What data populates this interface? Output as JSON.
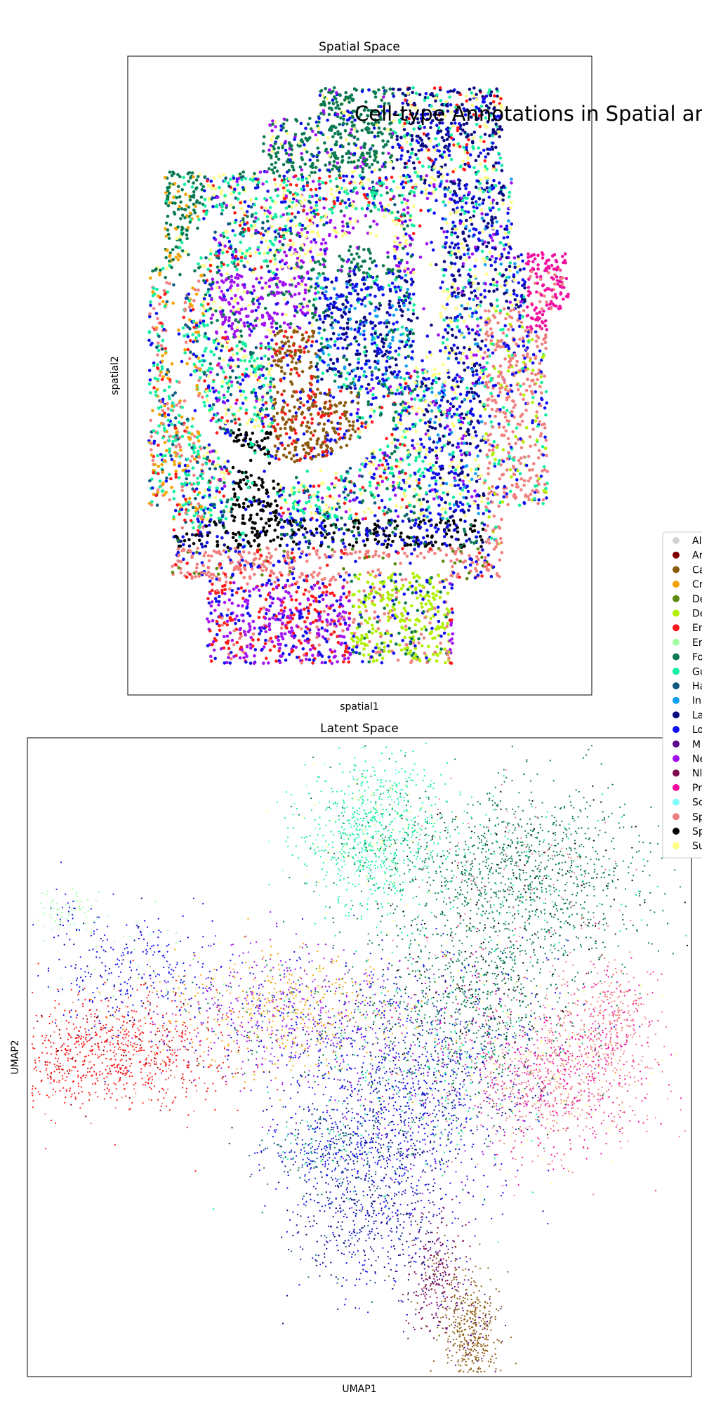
{
  "figure": {
    "suptitle": "Cell-type Annotations in Spatial and"
  },
  "chart_data": [
    {
      "type": "scatter",
      "title": "Spatial Space",
      "xlabel": "spatial1",
      "ylabel": "spatial2",
      "ticks": false,
      "grid": false,
      "xlim": [
        0,
        100
      ],
      "ylim": [
        0,
        100
      ]
    },
    {
      "type": "scatter",
      "title": "Latent Space",
      "xlabel": "UMAP1",
      "ylabel": "UMAP2",
      "ticks": false,
      "grid": false,
      "xlim": [
        0,
        100
      ],
      "ylim": [
        0,
        100
      ]
    }
  ],
  "legend": {
    "placement": "right",
    "entries": [
      {
        "label": "Al",
        "color": "#d3d3d3"
      },
      {
        "label": "Ar",
        "color": "#800000"
      },
      {
        "label": "Ca",
        "color": "#8b5a0f"
      },
      {
        "label": "Cr",
        "color": "#f5a300"
      },
      {
        "label": "De",
        "color": "#5a8a10"
      },
      {
        "label": "De",
        "color": "#b0f000"
      },
      {
        "label": "En",
        "color": "#ff1a1a"
      },
      {
        "label": "En",
        "color": "#a0ffa0"
      },
      {
        "label": "Fo",
        "color": "#0a7a50"
      },
      {
        "label": "Gu",
        "color": "#10f0a0"
      },
      {
        "label": "Ha",
        "color": "#105a80"
      },
      {
        "label": "In",
        "color": "#10a0f0"
      },
      {
        "label": "La",
        "color": "#0a0a80"
      },
      {
        "label": "Lo",
        "color": "#1010f0"
      },
      {
        "label": "M",
        "color": "#5a0a8a"
      },
      {
        "label": "Ne",
        "color": "#a010f0"
      },
      {
        "label": "Nl",
        "color": "#800a50"
      },
      {
        "label": "Pr",
        "color": "#f010a0"
      },
      {
        "label": "Sc",
        "color": "#80ffff"
      },
      {
        "label": "Sp",
        "color": "#f08080"
      },
      {
        "label": "Sp",
        "color": "#000000"
      },
      {
        "label": "Su",
        "color": "#ffff80"
      }
    ]
  }
}
